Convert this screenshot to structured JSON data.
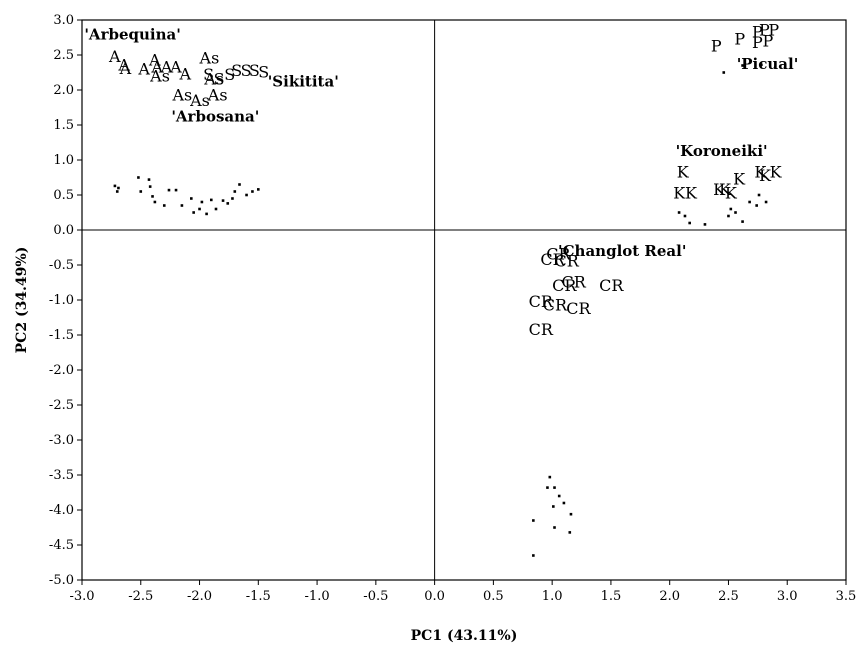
{
  "chart_data": {
    "type": "scatter",
    "xlabel": "PC1 (43.11%)",
    "ylabel": "PC2 (34.49%)",
    "xlim": [
      -3.0,
      3.5
    ],
    "ylim": [
      -5.0,
      3.0
    ],
    "xticks": [
      "-3.0",
      "-2.5",
      "-2.0",
      "-1.5",
      "-1.0",
      "-0.5",
      "0.0",
      "0.5",
      "1.0",
      "1.5",
      "2.0",
      "2.5",
      "3.0",
      "3.5"
    ],
    "yticks": [
      "3.0",
      "2.5",
      "2.0",
      "1.5",
      "1.0",
      "0.5",
      "0.0",
      "-0.5",
      "-1.0",
      "-1.5",
      "-2.0",
      "-2.5",
      "-3.0",
      "-3.5",
      "-4.0",
      "-4.5",
      "-5.0"
    ],
    "reference_lines": {
      "x": 0.0,
      "y": 0.0
    },
    "group_labels": [
      {
        "text": "'Arbequina'",
        "x": -2.98,
        "y": 2.72
      },
      {
        "text": "'Sikitita'",
        "x": -1.42,
        "y": 2.05
      },
      {
        "text": "'Arbosana'",
        "x": -2.24,
        "y": 1.55
      },
      {
        "text": "'Picual'",
        "x": 2.57,
        "y": 2.3
      },
      {
        "text": "'Koroneiki'",
        "x": 2.05,
        "y": 1.06
      },
      {
        "text": "'Changlot Real'",
        "x": 1.05,
        "y": -0.37
      }
    ],
    "series": [
      {
        "name": "Arbequina",
        "marker": "A",
        "points": [
          {
            "x": -2.77,
            "y": 2.4
          },
          {
            "x": -2.69,
            "y": 2.28
          },
          {
            "x": -2.68,
            "y": 2.23
          },
          {
            "x": -2.52,
            "y": 2.22
          },
          {
            "x": -2.43,
            "y": 2.35
          },
          {
            "x": -2.41,
            "y": 2.25
          },
          {
            "x": -2.33,
            "y": 2.25
          },
          {
            "x": -2.25,
            "y": 2.25
          },
          {
            "x": -2.17,
            "y": 2.15
          }
        ]
      },
      {
        "name": "Arbosana",
        "marker": "As",
        "points": [
          {
            "x": -2.0,
            "y": 2.38
          },
          {
            "x": -2.42,
            "y": 2.12
          },
          {
            "x": -2.23,
            "y": 1.85
          },
          {
            "x": -2.08,
            "y": 1.77
          },
          {
            "x": -1.93,
            "y": 1.85
          },
          {
            "x": -1.96,
            "y": 2.08
          }
        ]
      },
      {
        "name": "Sikitita",
        "marker": "S",
        "points": [
          {
            "x": -1.97,
            "y": 2.14
          },
          {
            "x": -1.88,
            "y": 2.08
          },
          {
            "x": -1.79,
            "y": 2.14
          },
          {
            "x": -1.73,
            "y": 2.2
          },
          {
            "x": -1.65,
            "y": 2.2
          },
          {
            "x": -1.58,
            "y": 2.2
          },
          {
            "x": -1.5,
            "y": 2.18
          }
        ]
      },
      {
        "name": "Picual",
        "marker": "P",
        "points": [
          {
            "x": 2.35,
            "y": 2.55
          },
          {
            "x": 2.55,
            "y": 2.65
          },
          {
            "x": 2.7,
            "y": 2.75
          },
          {
            "x": 2.76,
            "y": 2.78
          },
          {
            "x": 2.84,
            "y": 2.78
          },
          {
            "x": 2.79,
            "y": 2.62
          },
          {
            "x": 2.7,
            "y": 2.6
          }
        ]
      },
      {
        "name": "Koroneiki",
        "marker": "K",
        "points": [
          {
            "x": 2.06,
            "y": 0.75
          },
          {
            "x": 2.03,
            "y": 0.45
          },
          {
            "x": 2.13,
            "y": 0.45
          },
          {
            "x": 2.37,
            "y": 0.5
          },
          {
            "x": 2.42,
            "y": 0.5
          },
          {
            "x": 2.47,
            "y": 0.45
          },
          {
            "x": 2.54,
            "y": 0.65
          },
          {
            "x": 2.72,
            "y": 0.75
          },
          {
            "x": 2.76,
            "y": 0.7
          },
          {
            "x": 2.85,
            "y": 0.75
          }
        ]
      },
      {
        "name": "Changlot Real",
        "marker": "CR",
        "points": [
          {
            "x": 0.95,
            "y": -0.42
          },
          {
            "x": 0.9,
            "y": -0.5
          },
          {
            "x": 1.02,
            "y": -0.52
          },
          {
            "x": 1.08,
            "y": -0.82
          },
          {
            "x": 1.0,
            "y": -0.87
          },
          {
            "x": 1.4,
            "y": -0.87
          },
          {
            "x": 0.8,
            "y": -1.1
          },
          {
            "x": 0.92,
            "y": -1.15
          },
          {
            "x": 1.12,
            "y": -1.2
          },
          {
            "x": 0.8,
            "y": -1.5
          }
        ]
      },
      {
        "name": "Changlot Real (scores)",
        "marker": "dot",
        "points": [
          {
            "x": 0.98,
            "y": -3.53
          },
          {
            "x": 0.96,
            "y": -3.68
          },
          {
            "x": 1.02,
            "y": -3.68
          },
          {
            "x": 1.06,
            "y": -3.8
          },
          {
            "x": 1.1,
            "y": -3.9
          },
          {
            "x": 1.01,
            "y": -3.95
          },
          {
            "x": 0.84,
            "y": -4.15
          },
          {
            "x": 1.16,
            "y": -4.06
          },
          {
            "x": 1.02,
            "y": -4.25
          },
          {
            "x": 1.15,
            "y": -4.32
          },
          {
            "x": 0.84,
            "y": -4.65
          }
        ]
      },
      {
        "name": "Arbequina / Arbosana / Sikitita (scores)",
        "marker": "dot",
        "points": [
          {
            "x": -2.72,
            "y": 0.63
          },
          {
            "x": -2.69,
            "y": 0.6
          },
          {
            "x": -2.7,
            "y": 0.55
          },
          {
            "x": -2.52,
            "y": 0.75
          },
          {
            "x": -2.5,
            "y": 0.55
          },
          {
            "x": -2.43,
            "y": 0.72
          },
          {
            "x": -2.42,
            "y": 0.62
          },
          {
            "x": -2.4,
            "y": 0.48
          },
          {
            "x": -2.38,
            "y": 0.4
          },
          {
            "x": -2.3,
            "y": 0.35
          },
          {
            "x": -2.26,
            "y": 0.57
          },
          {
            "x": -2.2,
            "y": 0.57
          },
          {
            "x": -2.15,
            "y": 0.35
          },
          {
            "x": -2.07,
            "y": 0.45
          },
          {
            "x": -2.05,
            "y": 0.25
          },
          {
            "x": -2.0,
            "y": 0.3
          },
          {
            "x": -1.98,
            "y": 0.4
          },
          {
            "x": -1.94,
            "y": 0.23
          },
          {
            "x": -1.9,
            "y": 0.43
          },
          {
            "x": -1.86,
            "y": 0.3
          },
          {
            "x": -1.8,
            "y": 0.42
          },
          {
            "x": -1.76,
            "y": 0.38
          },
          {
            "x": -1.72,
            "y": 0.45
          },
          {
            "x": -1.7,
            "y": 0.55
          },
          {
            "x": -1.66,
            "y": 0.65
          },
          {
            "x": -1.6,
            "y": 0.5
          },
          {
            "x": -1.55,
            "y": 0.55
          },
          {
            "x": -1.5,
            "y": 0.58
          }
        ]
      },
      {
        "name": "Koroneiki (scores)",
        "marker": "dot",
        "points": [
          {
            "x": 2.08,
            "y": 0.25
          },
          {
            "x": 2.13,
            "y": 0.2
          },
          {
            "x": 2.17,
            "y": 0.1
          },
          {
            "x": 2.3,
            "y": 0.08
          },
          {
            "x": 2.5,
            "y": 0.2
          },
          {
            "x": 2.52,
            "y": 0.3
          },
          {
            "x": 2.56,
            "y": 0.25
          },
          {
            "x": 2.62,
            "y": 0.12
          },
          {
            "x": 2.68,
            "y": 0.4
          },
          {
            "x": 2.74,
            "y": 0.35
          },
          {
            "x": 2.76,
            "y": 0.5
          },
          {
            "x": 2.82,
            "y": 0.4
          }
        ]
      },
      {
        "name": "Picual (scores)",
        "marker": "dot",
        "points": [
          {
            "x": 2.46,
            "y": 2.25
          },
          {
            "x": 2.62,
            "y": 2.35
          },
          {
            "x": 2.78,
            "y": 2.36
          }
        ]
      }
    ]
  }
}
